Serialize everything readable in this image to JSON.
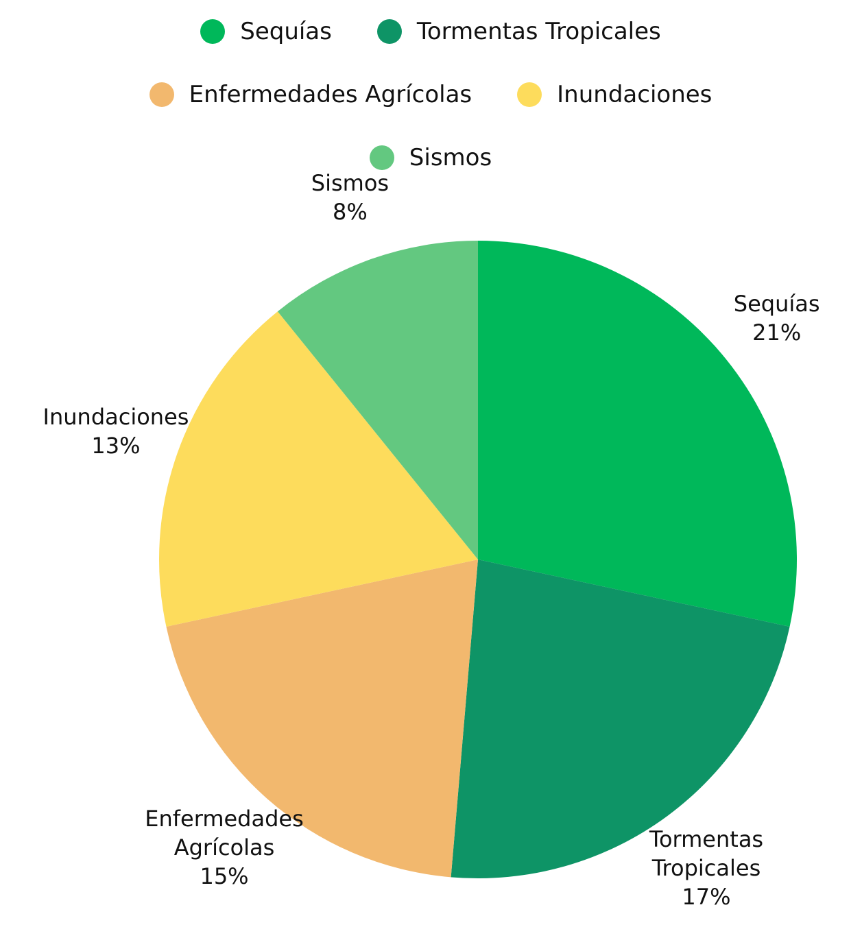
{
  "chart_data": {
    "type": "pie",
    "categories": [
      "Sequías",
      "Tormentas Tropicales",
      "Enfermedades Agrícolas",
      "Inundaciones",
      "Sismos"
    ],
    "values": [
      21,
      17,
      15,
      13,
      8
    ],
    "value_labels": [
      "21%",
      "17%",
      "15%",
      "13%",
      "8%"
    ],
    "colors": [
      "#00b85a",
      "#0e9466",
      "#f2b86e",
      "#fddc5c",
      "#63c880"
    ],
    "legend": "top"
  }
}
